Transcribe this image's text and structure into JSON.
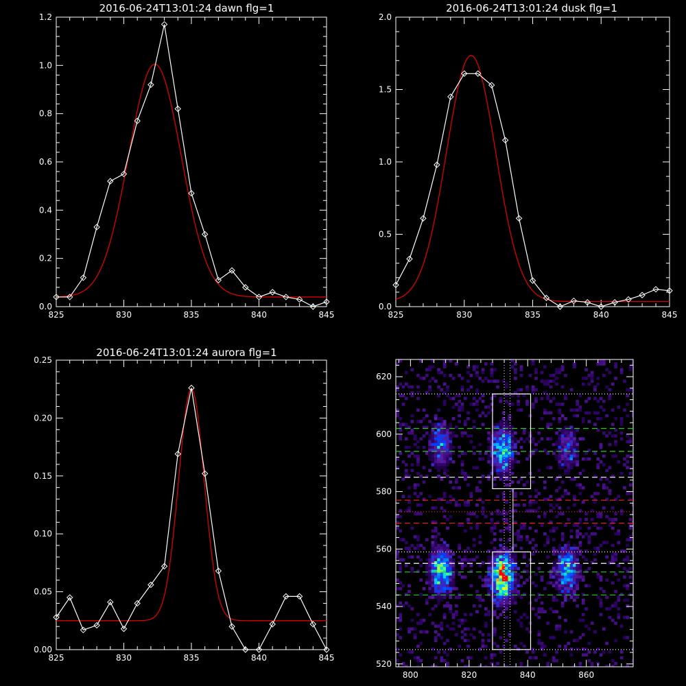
{
  "chart_data": [
    {
      "type": "line",
      "title": "2016-06-24T13:01:24 dawn flg=1",
      "xlim": [
        825,
        845
      ],
      "ylim": [
        0,
        1.2
      ],
      "xticks": [
        825,
        830,
        835,
        840,
        845
      ],
      "yticks": [
        0.0,
        0.2,
        0.4,
        0.6,
        0.8,
        1.0,
        1.2
      ],
      "ytick_labels": [
        "0.0",
        "0.2",
        "0.4",
        "0.6",
        "0.8",
        "1.0",
        "1.2"
      ],
      "data": {
        "x": [
          825,
          826,
          827,
          828,
          829,
          830,
          831,
          832,
          833,
          834,
          835,
          836,
          837,
          838,
          839,
          840,
          841,
          842,
          843,
          844,
          845
        ],
        "y": [
          0.04,
          0.04,
          0.12,
          0.33,
          0.52,
          0.55,
          0.77,
          0.92,
          1.17,
          0.82,
          0.47,
          0.3,
          0.11,
          0.15,
          0.08,
          0.04,
          0.06,
          0.04,
          0.03,
          0.0,
          0.02
        ]
      },
      "fit": {
        "type": "gaussian",
        "amplitude": 0.965,
        "center": 832.3,
        "sigma": 1.95,
        "offset": 0.04
      },
      "colors": {
        "data": "#ffffff",
        "fit": "#dd0000"
      }
    },
    {
      "type": "line",
      "title": "2016-06-24T13:01:24 dusk flg=1",
      "xlim": [
        825,
        845
      ],
      "ylim": [
        0,
        2.0
      ],
      "xticks": [
        825,
        830,
        835,
        840,
        845
      ],
      "yticks": [
        0.0,
        0.5,
        1.0,
        1.5,
        2.0
      ],
      "ytick_labels": [
        "0.0",
        "0.5",
        "1.0",
        "1.5",
        "2.0"
      ],
      "data": {
        "x": [
          825,
          826,
          827,
          828,
          829,
          830,
          831,
          832,
          833,
          834,
          835,
          836,
          837,
          838,
          839,
          840,
          841,
          842,
          843,
          844,
          845
        ],
        "y": [
          0.15,
          0.33,
          0.61,
          0.98,
          1.45,
          1.61,
          1.61,
          1.53,
          1.15,
          0.61,
          0.18,
          0.06,
          0.0,
          0.04,
          0.03,
          0.0,
          0.03,
          0.05,
          0.08,
          0.12,
          0.11
        ]
      },
      "fit": {
        "type": "gaussian",
        "amplitude": 1.7,
        "center": 830.5,
        "sigma": 1.8,
        "offset": 0.035
      },
      "colors": {
        "data": "#ffffff",
        "fit": "#dd0000"
      }
    },
    {
      "type": "line",
      "title": "2016-06-24T13:01:24 aurora flg=1",
      "xlim": [
        825,
        845
      ],
      "ylim": [
        0,
        0.25
      ],
      "xticks": [
        825,
        830,
        835,
        840,
        845
      ],
      "yticks": [
        0.0,
        0.05,
        0.1,
        0.15,
        0.2,
        0.25
      ],
      "ytick_labels": [
        "0.00",
        "0.05",
        "0.10",
        "0.15",
        "0.20",
        "0.25"
      ],
      "data": {
        "x": [
          825,
          826,
          827,
          828,
          829,
          830,
          831,
          832,
          833,
          834,
          835,
          836,
          837,
          838,
          839,
          840,
          841,
          842,
          843,
          844,
          845
        ],
        "y": [
          0.028,
          0.045,
          0.017,
          0.021,
          0.041,
          0.018,
          0.04,
          0.056,
          0.072,
          0.169,
          0.226,
          0.152,
          0.068,
          0.02,
          0.0,
          0.0,
          0.022,
          0.046,
          0.046,
          0.022,
          0.0
        ]
      },
      "fit": {
        "type": "gaussian",
        "amplitude": 0.2,
        "center": 835.0,
        "sigma": 0.95,
        "offset": 0.025
      },
      "colors": {
        "data": "#ffffff",
        "fit": "#dd0000"
      }
    },
    {
      "type": "heatmap",
      "title": "",
      "xlim": [
        795,
        876
      ],
      "ylim": [
        519,
        626
      ],
      "xticks": [
        800,
        820,
        840,
        860
      ],
      "yticks": [
        520,
        540,
        560,
        580,
        600,
        620
      ],
      "colormap": [
        "#000000",
        "#2a0060",
        "#5a1aa0",
        "#0040ff",
        "#00c8ff",
        "#40ff80",
        "#ffff00",
        "#ff0000"
      ],
      "blobs": [
        {
          "x": 810,
          "y": 553,
          "peak": 0.7
        },
        {
          "x": 831,
          "y": 551,
          "peak": 1.0
        },
        {
          "x": 853,
          "y": 553,
          "peak": 0.55
        },
        {
          "x": 810,
          "y": 597,
          "peak": 0.45
        },
        {
          "x": 831,
          "y": 595,
          "peak": 0.62
        },
        {
          "x": 853,
          "y": 595,
          "peak": 0.3
        }
      ],
      "boxes": [
        {
          "x0": 828,
          "x1": 841,
          "y0": 581,
          "y1": 614
        },
        {
          "x0": 828,
          "x1": 841,
          "y0": 525,
          "y1": 559
        }
      ],
      "vertical_lines": [
        {
          "x": 832,
          "color": "#ffffff",
          "style": "dotted"
        },
        {
          "x": 834,
          "color": "#ffffff",
          "style": "dotted"
        },
        {
          "x": 835,
          "color": "#ffffff",
          "style": "solid",
          "y0": 559,
          "y1": 581
        }
      ],
      "horizontal_lines": [
        {
          "y": 614,
          "color": "#ffffff",
          "style": "dotted"
        },
        {
          "y": 602,
          "color": "#22cc22",
          "style": "dashed"
        },
        {
          "y": 594,
          "color": "#22cc22",
          "style": "dashed"
        },
        {
          "y": 585,
          "color": "#ffffff",
          "style": "dashed"
        },
        {
          "y": 577,
          "color": "#dd2222",
          "style": "dashed"
        },
        {
          "y": 573,
          "color": "#dd2222",
          "style": "dotted"
        },
        {
          "y": 569,
          "color": "#dd2222",
          "style": "dashed"
        },
        {
          "y": 559,
          "color": "#ffffff",
          "style": "dotted"
        },
        {
          "y": 555,
          "color": "#ffffff",
          "style": "dashed"
        },
        {
          "y": 552,
          "color": "#22cc22",
          "style": "dashed"
        },
        {
          "y": 544,
          "color": "#22cc22",
          "style": "dashed"
        },
        {
          "y": 525,
          "color": "#ffffff",
          "style": "dotted"
        }
      ]
    }
  ]
}
